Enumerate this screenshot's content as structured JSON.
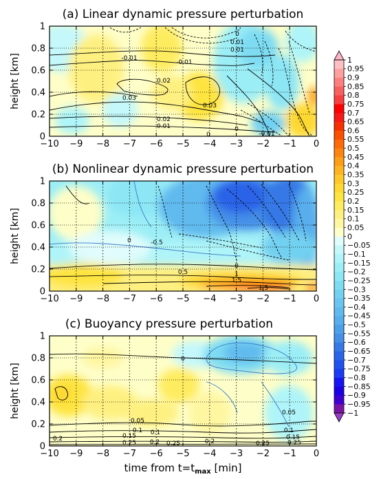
{
  "chart_data": {
    "type": "heatmap",
    "xlabel_main": "time from t=t",
    "xlabel_sub": "max",
    "xlabel_unit": " [min]",
    "ylabel": "height [km]",
    "x": {
      "min": -10,
      "max": 0,
      "ticks": [
        -10,
        -9,
        -8,
        -7,
        -6,
        -5,
        -4,
        -3,
        -2,
        -1,
        0
      ],
      "dotted_verticals": [
        -9,
        -8,
        -7,
        -6,
        -5,
        -4,
        -3,
        -2,
        -1
      ]
    },
    "y": {
      "min": 0,
      "max": 1,
      "ticks": [
        0,
        0.2,
        0.4,
        0.6,
        0.8,
        1
      ],
      "tick_labels": [
        "0",
        "0.2",
        "0.4",
        "0.6",
        "0.8",
        "1"
      ],
      "dotted_horizontals": [
        0.2,
        0.4,
        0.6,
        0.8
      ]
    },
    "colorbar": {
      "min": -1,
      "max": 1,
      "step": 0.05,
      "extend": "both",
      "labels": [
        "-1",
        "-0.95",
        "-0.9",
        "-0.85",
        "-0.8",
        "-0.75",
        "-0.7",
        "-0.65",
        "-0.6",
        "-0.55",
        "-0.5",
        "-0.45",
        "-0.4",
        "-0.35",
        "-0.3",
        "-0.25",
        "-0.2",
        "-0.15",
        "-0.1",
        "-0.05",
        "0",
        "0.05",
        "0.1",
        "0.15",
        "0.2",
        "0.25",
        "0.3",
        "0.35",
        "0.4",
        "0.45",
        "0.5",
        "0.55",
        "0.6",
        "0.65",
        "0.7",
        "0.75",
        "0.8",
        "0.85",
        "0.9",
        "0.95",
        "1"
      ],
      "colors": [
        "#7B14A6",
        "#3E00D2",
        "#1C00E5",
        "#1414F5",
        "#1A3CF5",
        "#2052F0",
        "#2A64E8",
        "#3678E6",
        "#4490E8",
        "#4CA0EA",
        "#58AEEC",
        "#60BAEE",
        "#6AC6F0",
        "#72D0F0",
        "#7EDCF2",
        "#8CE6F4",
        "#9CEEF6",
        "#AEF4F8",
        "#C4F8FA",
        "#E0FCFC",
        "#FEFEC8",
        "#FEF6A0",
        "#FEF080",
        "#FEEC60",
        "#FEE440",
        "#FED830",
        "#FEC828",
        "#FEB420",
        "#FE9E18",
        "#FE8410",
        "#FE6A08",
        "#FC5000",
        "#F83000",
        "#F81818",
        "#FF0000",
        "#F84040",
        "#F86060",
        "#FC8080",
        "#FCA0A0",
        "#FCC0C4"
      ],
      "low_extend_color": "#9A3CC4",
      "high_extend_color": "#FFB4C8"
    },
    "panels": [
      {
        "title": "(a) Linear dynamic pressure perturbation",
        "contour_labels": [
          "-0.01",
          "-0.01",
          "0.01",
          "0.02",
          "0.03",
          "0.03",
          "0.02",
          "0.01",
          "0",
          "0",
          "0.01",
          "0",
          "-0.01"
        ]
      },
      {
        "title": "(b) Nonlinear dynamic pressure perturbation",
        "contour_labels": [
          "0",
          "-0.5",
          "0.5",
          "0",
          "1",
          "1.5",
          "1.5"
        ]
      },
      {
        "title": "(c) Buoyancy pressure perturbation",
        "contour_labels": [
          "0",
          "0.05",
          "0.1",
          "0.05",
          "0.1",
          "0.2",
          "0.15",
          "0.25",
          "0.2",
          "0.25",
          "0.15",
          "0.1",
          "0.2",
          "0.25",
          "0.25"
        ]
      }
    ]
  }
}
